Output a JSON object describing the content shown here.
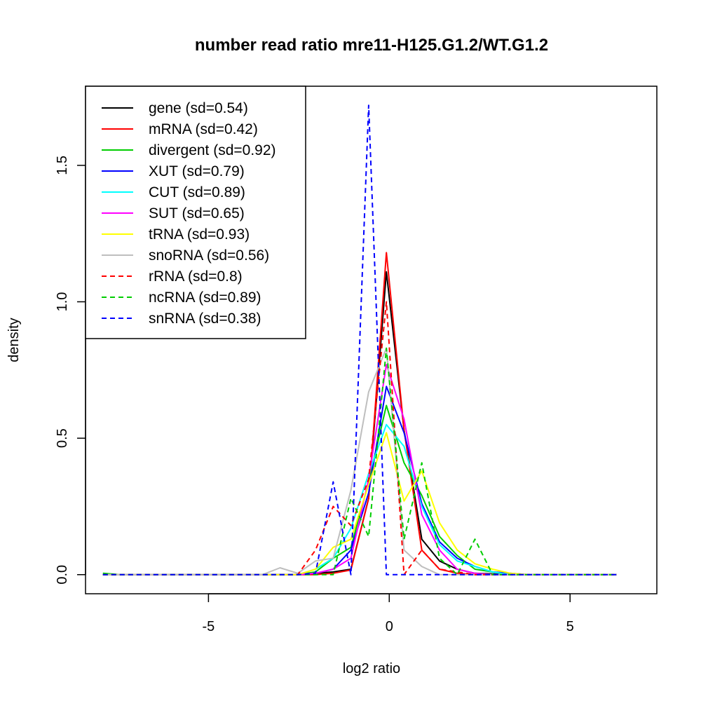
{
  "chart_data": {
    "type": "line",
    "title": "number read ratio mre11-H125.G1.2/WT.G1.2",
    "xlabel": "log2 ratio",
    "ylabel": "density",
    "xlim": [
      -8.4,
      7.4
    ],
    "ylim": [
      -0.07,
      1.79
    ],
    "xticks": [
      -5,
      0,
      5
    ],
    "xtick_labels": [
      "-5",
      "0",
      "5"
    ],
    "yticks": [
      0,
      0.5,
      1,
      1.5
    ],
    "ytick_labels": [
      "0.0",
      "0.5",
      "1.0",
      "1.5"
    ],
    "grid": false,
    "legend_position": "top-left",
    "x": [
      -7.92,
      -7.43,
      -6.94,
      -6.45,
      -5.96,
      -5.47,
      -4.98,
      -4.49,
      -4.0,
      -3.51,
      -3.02,
      -2.53,
      -2.04,
      -1.55,
      -1.06,
      -0.57,
      -0.08,
      0.41,
      0.9,
      1.39,
      1.88,
      2.37,
      2.86,
      3.35,
      3.84,
      4.33,
      4.82,
      5.31,
      5.8,
      6.29
    ],
    "series": [
      {
        "name": "gene (sd=0.54)",
        "color": "#000000",
        "dash": false,
        "values": [
          0,
          0,
          0,
          0,
          0,
          0,
          0,
          0,
          0,
          0,
          0,
          0,
          0.005,
          0.01,
          0.02,
          0.28,
          1.11,
          0.53,
          0.13,
          0.05,
          0.02,
          0.005,
          0.003,
          0,
          0,
          0,
          0,
          0,
          0,
          0
        ]
      },
      {
        "name": "mRNA (sd=0.42)",
        "color": "#ff0000",
        "dash": false,
        "values": [
          0,
          0,
          0,
          0,
          0,
          0,
          0,
          0,
          0,
          0,
          0,
          0,
          0,
          0.005,
          0.017,
          0.28,
          1.18,
          0.53,
          0.09,
          0.02,
          0.005,
          0,
          0,
          0,
          0,
          0,
          0,
          0,
          0,
          0
        ]
      },
      {
        "name": "divergent (sd=0.92)",
        "color": "#00cd00",
        "dash": false,
        "values": [
          0.005,
          0,
          0,
          0,
          0,
          0,
          0,
          0,
          0,
          0,
          0,
          0,
          0.01,
          0.06,
          0.1,
          0.34,
          0.62,
          0.41,
          0.29,
          0.14,
          0.07,
          0.02,
          0.01,
          0,
          0,
          0,
          0,
          0,
          0,
          0
        ]
      },
      {
        "name": "XUT (sd=0.79)",
        "color": "#0000ff",
        "dash": false,
        "values": [
          0,
          0,
          0,
          0,
          0,
          0,
          0,
          0,
          0,
          0,
          0,
          0,
          0.005,
          0.02,
          0.09,
          0.3,
          0.69,
          0.52,
          0.26,
          0.12,
          0.06,
          0.03,
          0.01,
          0.005,
          0,
          0,
          0,
          0,
          0,
          0
        ]
      },
      {
        "name": "CUT (sd=0.89)",
        "color": "#00ffff",
        "dash": false,
        "values": [
          0,
          0,
          0,
          0,
          0,
          0,
          0,
          0,
          0,
          0,
          0,
          0,
          0.02,
          0.06,
          0.17,
          0.37,
          0.55,
          0.47,
          0.25,
          0.11,
          0.05,
          0.03,
          0.01,
          0,
          0,
          0,
          0,
          0,
          0,
          0
        ]
      },
      {
        "name": "SUT (sd=0.65)",
        "color": "#ff00ff",
        "dash": false,
        "values": [
          0,
          0,
          0,
          0,
          0,
          0,
          0,
          0,
          0,
          0,
          0,
          0,
          0.005,
          0.02,
          0.06,
          0.35,
          0.77,
          0.57,
          0.22,
          0.09,
          0.02,
          0.005,
          0,
          0,
          0,
          0,
          0,
          0,
          0,
          0
        ]
      },
      {
        "name": "tRNA (sd=0.93)",
        "color": "#ffff00",
        "dash": false,
        "values": [
          0,
          0,
          0,
          0,
          0,
          0,
          0,
          0,
          0,
          0,
          0,
          0,
          0.02,
          0.1,
          0.13,
          0.33,
          0.52,
          0.27,
          0.38,
          0.19,
          0.09,
          0.04,
          0.02,
          0.005,
          0,
          0,
          0,
          0,
          0,
          0
        ]
      },
      {
        "name": "snoRNA (sd=0.56)",
        "color": "#bebebe",
        "dash": false,
        "values": [
          0,
          0,
          0,
          0,
          0,
          0,
          0,
          0,
          0,
          0,
          0.025,
          0.005,
          0.05,
          0.06,
          0.31,
          0.67,
          0.83,
          0.09,
          0.03,
          0,
          0,
          0,
          0,
          0,
          0,
          0,
          0,
          0,
          0,
          0
        ]
      },
      {
        "name": "rRNA (sd=0.8)",
        "color": "#ff0000",
        "dash": true,
        "values": [
          0,
          0,
          0,
          0,
          0,
          0,
          0,
          0,
          0,
          0,
          0,
          0,
          0.09,
          0.25,
          0.18,
          0.35,
          1.0,
          0,
          0.09,
          0.02,
          0.01,
          0,
          0,
          0,
          0,
          0,
          0,
          0,
          0,
          0
        ]
      },
      {
        "name": "ncRNA (sd=0.89)",
        "color": "#00cd00",
        "dash": true,
        "values": [
          0,
          0,
          0,
          0,
          0,
          0,
          0,
          0,
          0,
          0,
          0,
          0,
          0,
          0,
          0.28,
          0.14,
          0.83,
          0.13,
          0.41,
          0.06,
          0,
          0.13,
          0,
          0,
          0,
          0,
          0,
          0,
          0,
          0
        ]
      },
      {
        "name": "snRNA (sd=0.38)",
        "color": "#0000ff",
        "dash": true,
        "values": [
          0,
          0,
          0,
          0,
          0,
          0,
          0,
          0,
          0,
          0,
          0,
          0,
          0.005,
          0.34,
          0,
          1.72,
          0,
          0,
          0,
          0,
          0,
          0,
          0,
          0,
          0,
          0,
          0,
          0,
          0,
          0
        ]
      }
    ]
  }
}
